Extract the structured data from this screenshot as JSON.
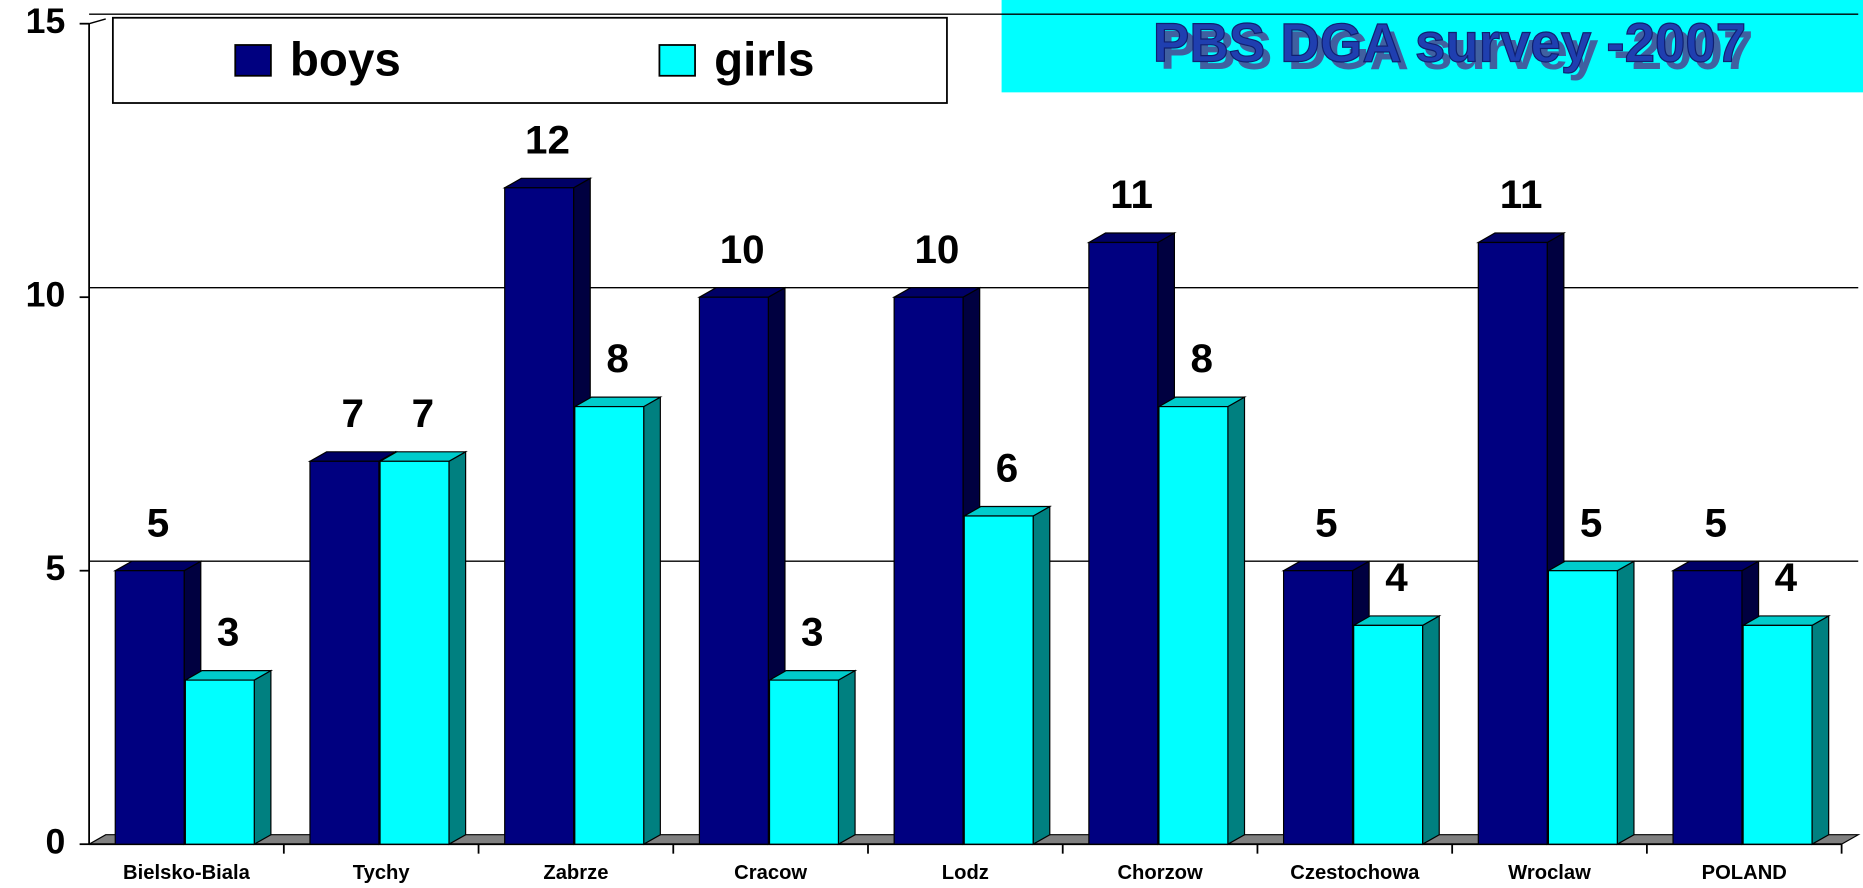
{
  "chart_data": {
    "type": "bar3d",
    "title": "PBS DGA survey -2007",
    "categories": [
      "Bielsko-Biala",
      "Tychy",
      "Zabrze",
      "Cracow",
      "Lodz",
      "Chorzow",
      "Czestochowa",
      "Wroclaw",
      "POLAND"
    ],
    "series": [
      {
        "name": "boys",
        "color": "#000080",
        "values": [
          5,
          7,
          12,
          10,
          10,
          11,
          5,
          11,
          5
        ]
      },
      {
        "name": "girls",
        "color": "#00ffff",
        "values": [
          3,
          7,
          8,
          3,
          6,
          8,
          4,
          5,
          4
        ]
      }
    ],
    "ylim": [
      0,
      15
    ],
    "yticks": [
      0,
      5,
      10,
      15
    ],
    "grid": true,
    "legend": "top"
  }
}
